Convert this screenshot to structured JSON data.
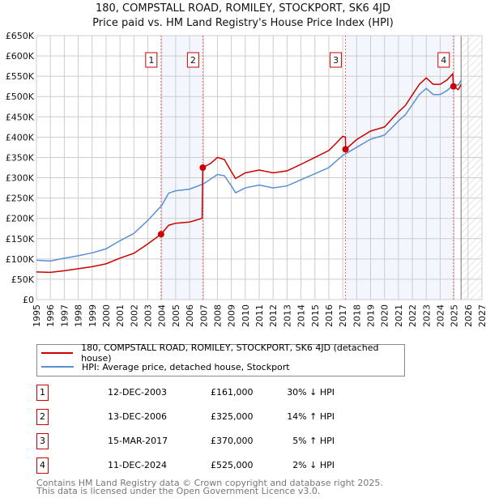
{
  "header": {
    "title": "180, COMPSTALL ROAD, ROMILEY, STOCKPORT, SK6 4JD",
    "subtitle": "Price paid vs. HM Land Registry's House Price Index (HPI)"
  },
  "chart_data": {
    "type": "line",
    "title": "180, COMPSTALL ROAD, ROMILEY, STOCKPORT, SK6 4JD",
    "subtitle": "Price paid vs. HM Land Registry's House Price Index (HPI)",
    "xlim": [
      1995,
      2027
    ],
    "ylim": [
      0,
      650000
    ],
    "xticks": [
      "1995",
      "1996",
      "1997",
      "1998",
      "1999",
      "2000",
      "2001",
      "2002",
      "2003",
      "2004",
      "2005",
      "2006",
      "2007",
      "2008",
      "2009",
      "2010",
      "2011",
      "2012",
      "2013",
      "2014",
      "2015",
      "2016",
      "2017",
      "2018",
      "2019",
      "2020",
      "2021",
      "2022",
      "2023",
      "2024",
      "2025",
      "2026",
      "2027"
    ],
    "yticks": [
      "£0",
      "£50K",
      "£100K",
      "£150K",
      "£200K",
      "£250K",
      "£300K",
      "£350K",
      "£400K",
      "£450K",
      "£500K",
      "£550K",
      "£600K",
      "£650K"
    ],
    "grid": true,
    "forecast_start": 2025.5,
    "series": [
      {
        "name": "180, COMPSTALL ROAD, ROMILEY, STOCKPORT, SK6 4JD (detached house)",
        "color": "#cc0000",
        "x": [
          1995,
          1996,
          1997,
          1998,
          1999,
          2000,
          2001,
          2002,
          2003,
          2003.95,
          2004.5,
          2005,
          2006,
          2006.9,
          2006.95,
          2007.5,
          2008,
          2008.5,
          2009,
          2009.3,
          2010,
          2011,
          2012,
          2013,
          2014,
          2015,
          2016,
          2016.5,
          2017,
          2017.19,
          2017.21,
          2018,
          2019,
          2020,
          2021,
          2021.5,
          2022,
          2022.5,
          2023,
          2023.5,
          2024,
          2024.5,
          2024.9,
          2024.95,
          2025.3,
          2025.5
        ],
        "y": [
          68000,
          67000,
          71000,
          76000,
          81000,
          88000,
          102000,
          114000,
          137000,
          161000,
          183000,
          188000,
          191000,
          200000,
          325000,
          335000,
          350000,
          345000,
          315000,
          298000,
          312000,
          319000,
          312000,
          317000,
          333000,
          350000,
          367000,
          384000,
          402000,
          400000,
          370000,
          394000,
          415000,
          425000,
          462000,
          478000,
          504000,
          530000,
          546000,
          530000,
          530000,
          541000,
          556000,
          525000,
          517000,
          530000
        ]
      },
      {
        "name": "HPI: Average price, detached house, Stockport",
        "color": "#5b8fd4",
        "x": [
          1995,
          1996,
          1997,
          1998,
          1999,
          2000,
          2001,
          2002,
          2003,
          2004,
          2004.5,
          2005,
          2006,
          2007,
          2008,
          2008.5,
          2009,
          2009.3,
          2010,
          2011,
          2012,
          2013,
          2014,
          2015,
          2016,
          2016.5,
          2017,
          2018,
          2019,
          2020,
          2021,
          2021.5,
          2022,
          2022.5,
          2023,
          2023.5,
          2024,
          2024.5,
          2025,
          2025.3,
          2025.5
        ],
        "y": [
          97000,
          95000,
          102000,
          108000,
          115000,
          125000,
          145000,
          163000,
          195000,
          232000,
          262000,
          268000,
          272000,
          285000,
          308000,
          305000,
          280000,
          263000,
          275000,
          282000,
          275000,
          280000,
          295000,
          310000,
          325000,
          340000,
          355000,
          375000,
          395000,
          405000,
          440000,
          455000,
          480000,
          505000,
          520000,
          505000,
          505000,
          515000,
          530000,
          528000,
          540000
        ]
      }
    ],
    "sales": [
      {
        "n": "1",
        "x": 2003.95,
        "date": "12-DEC-2003",
        "price": "£161,000",
        "value": 161000,
        "hpi": "30% ↓ HPI"
      },
      {
        "n": "2",
        "x": 2006.95,
        "date": "13-DEC-2006",
        "price": "£325,000",
        "value": 325000,
        "hpi": "14% ↑ HPI"
      },
      {
        "n": "3",
        "x": 2017.2,
        "date": "15-MAR-2017",
        "price": "£370,000",
        "value": 370000,
        "hpi": "5% ↑ HPI"
      },
      {
        "n": "4",
        "x": 2024.95,
        "date": "11-DEC-2024",
        "price": "£525,000",
        "value": 525000,
        "hpi": "2% ↓ HPI"
      }
    ]
  },
  "legend": {
    "red": "180, COMPSTALL ROAD, ROMILEY, STOCKPORT, SK6 4JD (detached house)",
    "blue": "HPI: Average price, detached house, Stockport"
  },
  "footer": {
    "line1": "Contains HM Land Registry data © Crown copyright and database right 2025.",
    "line2": "This data is licensed under the Open Government Licence v3.0."
  }
}
